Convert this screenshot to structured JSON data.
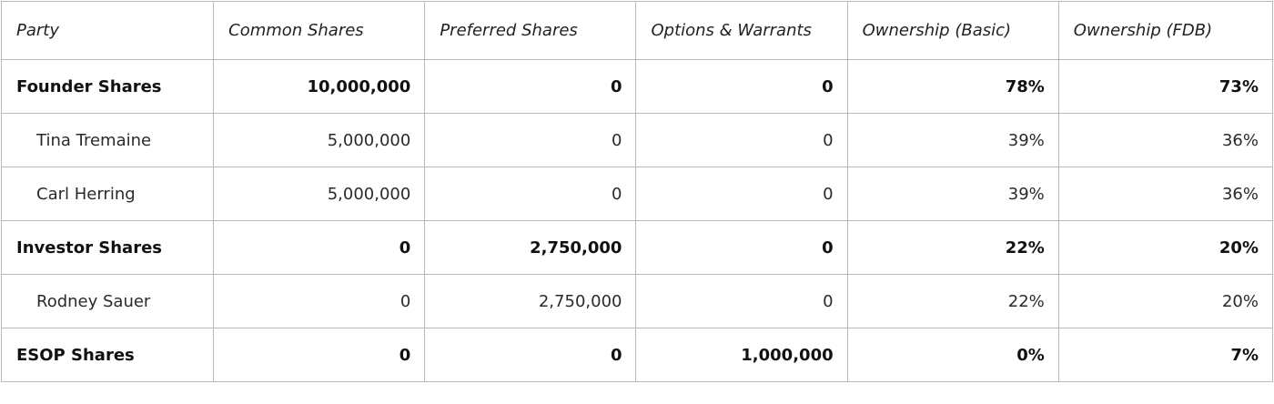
{
  "columns": {
    "party": "Party",
    "common": "Common Shares",
    "preferred": "Preferred Shares",
    "options": "Options & Warrants",
    "basic": "Ownership (Basic)",
    "fdb": "Ownership (FDB)"
  },
  "rows": [
    {
      "kind": "group",
      "party": "Founder Shares",
      "common": "10,000,000",
      "preferred": "0",
      "options": "0",
      "basic": "78%",
      "fdb": "73%"
    },
    {
      "kind": "sub",
      "party": "Tina Tremaine",
      "common": "5,000,000",
      "preferred": "0",
      "options": "0",
      "basic": "39%",
      "fdb": "36%"
    },
    {
      "kind": "sub",
      "party": "Carl Herring",
      "common": "5,000,000",
      "preferred": "0",
      "options": "0",
      "basic": "39%",
      "fdb": "36%"
    },
    {
      "kind": "group",
      "party": "Investor Shares",
      "common": "0",
      "preferred": "2,750,000",
      "options": "0",
      "basic": "22%",
      "fdb": "20%"
    },
    {
      "kind": "sub",
      "party": "Rodney Sauer",
      "common": "0",
      "preferred": "2,750,000",
      "options": "0",
      "basic": "22%",
      "fdb": "20%"
    },
    {
      "kind": "group",
      "party": "ESOP Shares",
      "common": "0",
      "preferred": "0",
      "options": "1,000,000",
      "basic": "0%",
      "fdb": "7%"
    }
  ]
}
